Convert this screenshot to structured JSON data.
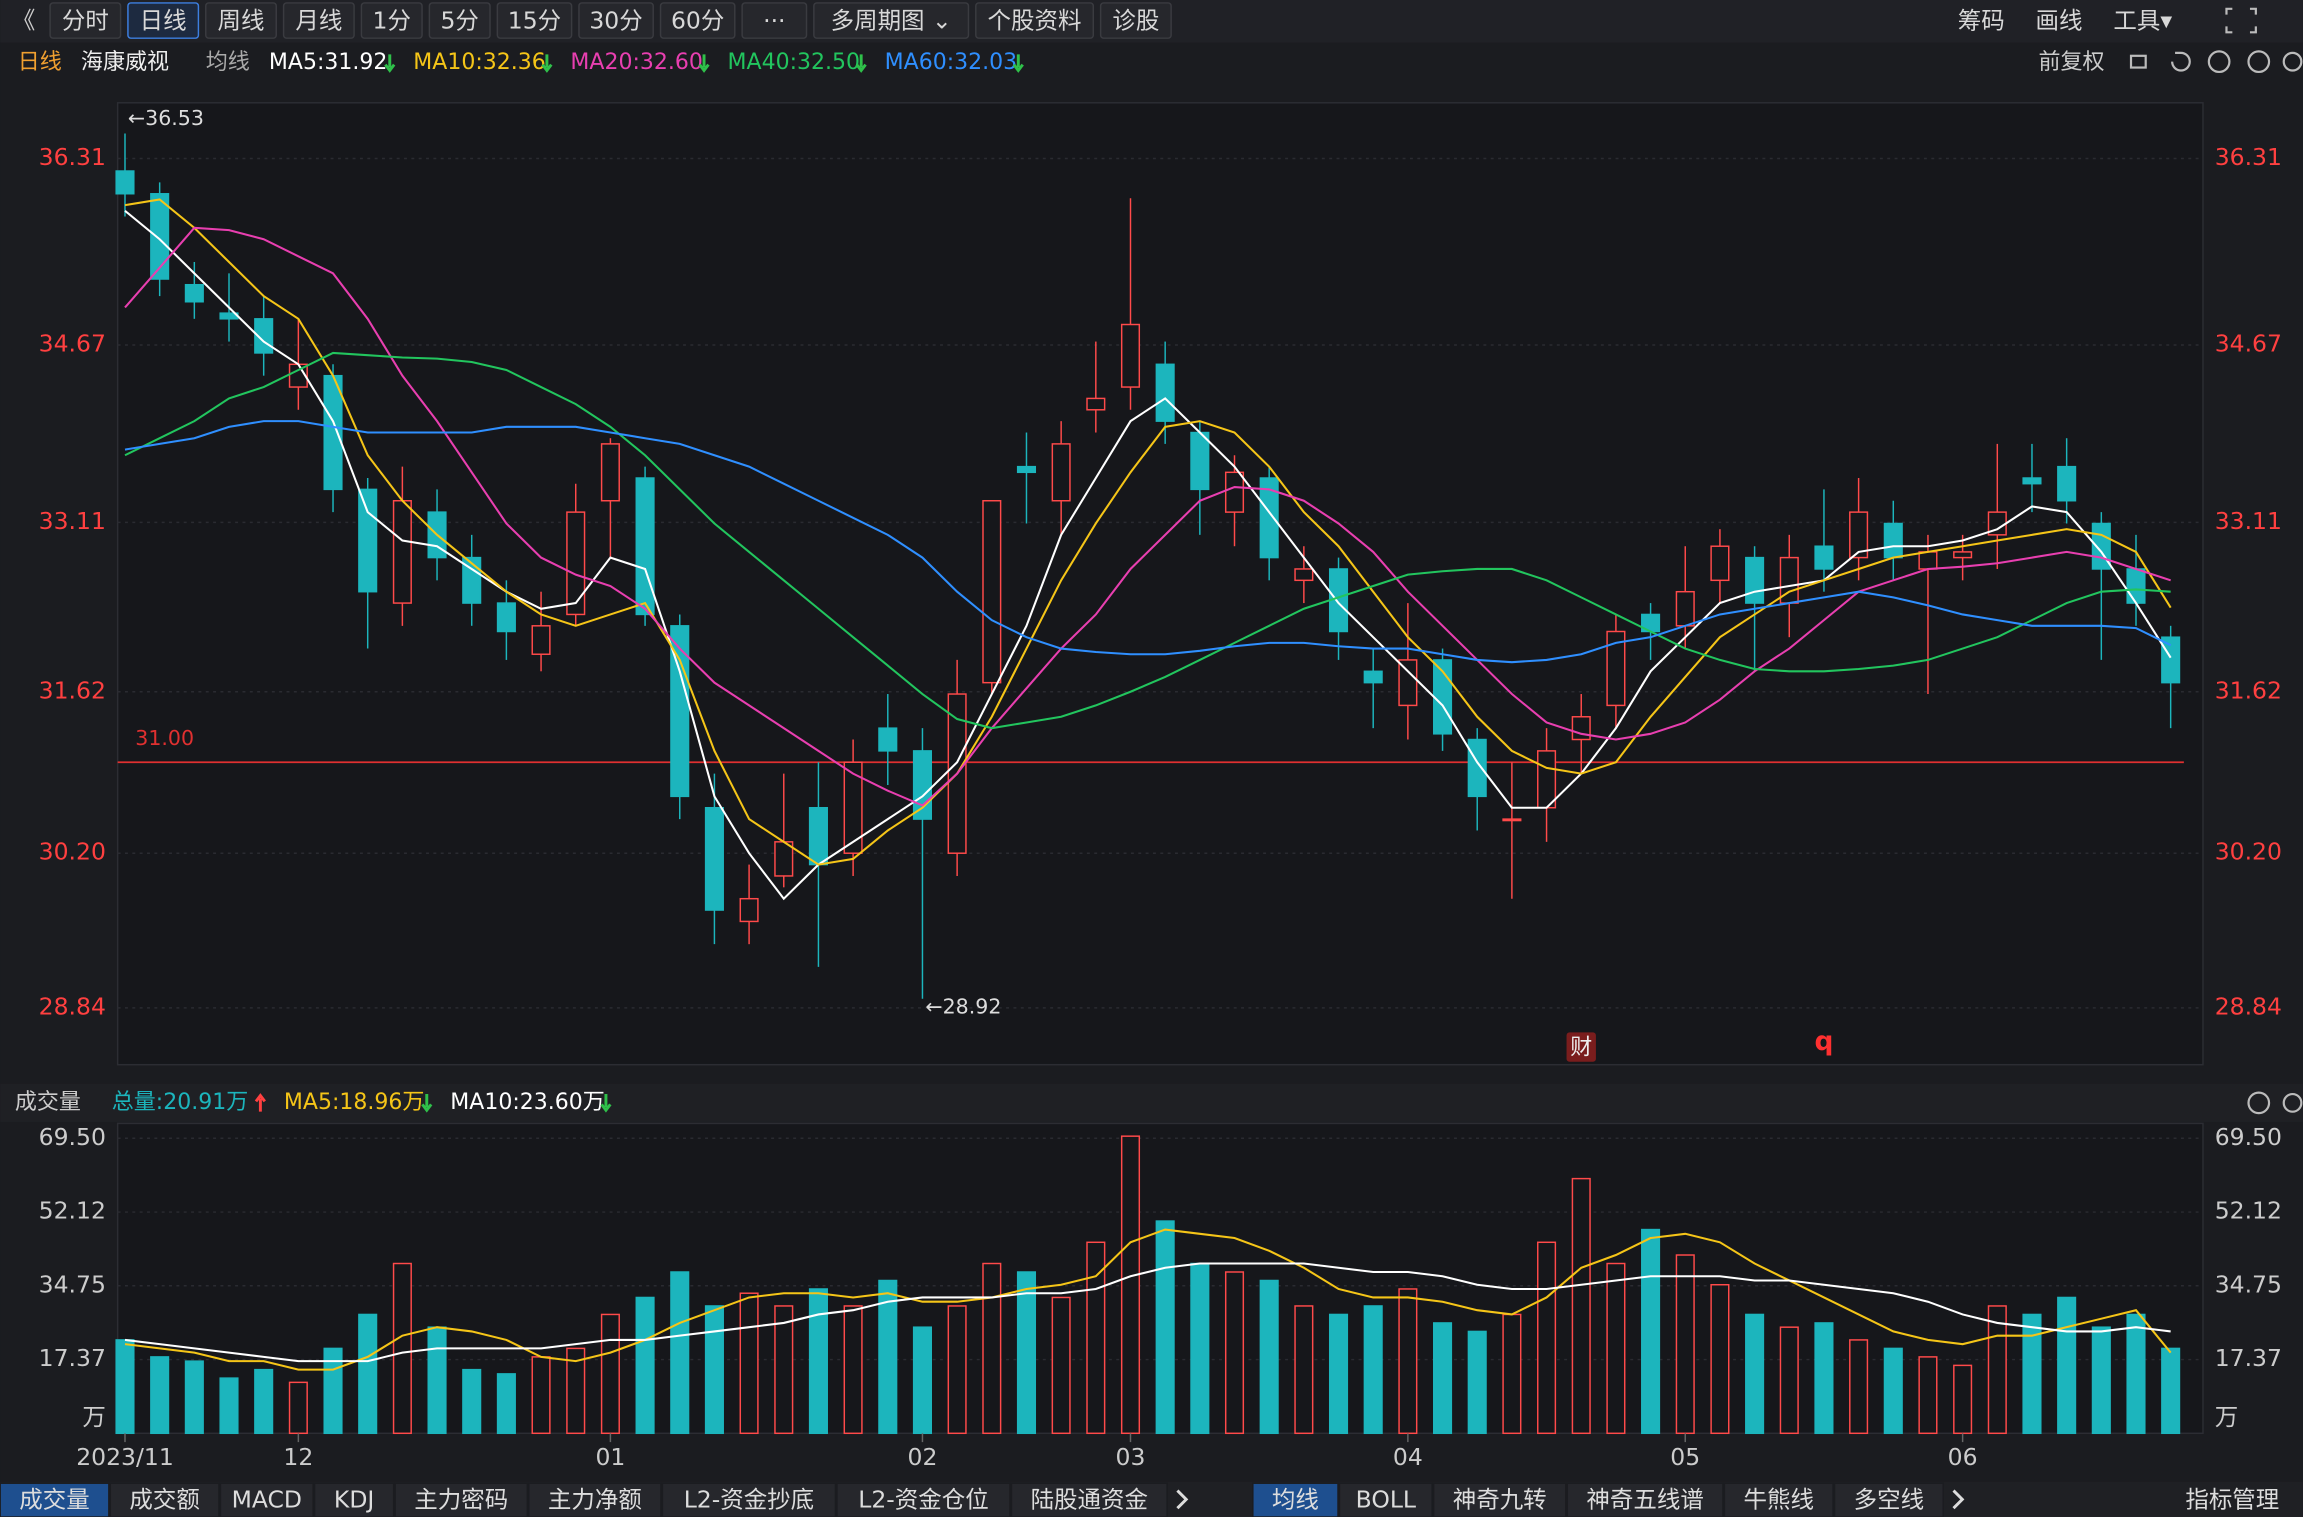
{
  "toolbar": {
    "back": "《",
    "left": [
      {
        "label": "分时"
      },
      {
        "label": "日线",
        "active": true
      },
      {
        "label": "周线"
      },
      {
        "label": "月线"
      },
      {
        "label": "1分"
      },
      {
        "label": "5分"
      },
      {
        "label": "15分"
      },
      {
        "label": "30分"
      },
      {
        "label": "60分"
      },
      {
        "label": "···"
      },
      {
        "label": "多周期图 ⌄"
      },
      {
        "label": "个股资料"
      },
      {
        "label": "诊股"
      }
    ],
    "right": [
      "筹码",
      "画线",
      "工具▾"
    ]
  },
  "info_bar": {
    "period": "日线",
    "stock": "海康威视",
    "indicator": "均线",
    "adjust": "前复权"
  },
  "chart_data": [
    {
      "type": "candlestick",
      "up_color": "#ff4a4a",
      "down_color": "#1cb5bd",
      "grid": true,
      "ylim": [
        28.34,
        36.8
      ],
      "yticks": [
        28.84,
        {
          "value": 30.2,
          "label": "30.20"
        },
        31.62,
        33.11,
        34.67,
        36.31
      ],
      "hline": {
        "value": 31,
        "label": "31.00",
        "color": "#e03030"
      },
      "annotations": {
        "max": "←36.53",
        "min": "←28.92"
      },
      "markers": [
        {
          "label": "财",
          "index": 42
        },
        {
          "label": "q",
          "index": 49
        }
      ],
      "categories": [
        "2023/11",
        null,
        null,
        null,
        null,
        "12",
        null,
        null,
        null,
        null,
        null,
        null,
        null,
        null,
        "01",
        null,
        null,
        null,
        null,
        null,
        null,
        null,
        null,
        "02",
        null,
        null,
        null,
        null,
        null,
        "03",
        null,
        null,
        null,
        null,
        null,
        null,
        null,
        "04",
        null,
        null,
        null,
        null,
        null,
        null,
        null,
        "05",
        null,
        null,
        null,
        null,
        null,
        null,
        null,
        "06",
        null,
        null,
        null,
        null,
        null,
        null
      ],
      "candles": [
        [
          36.2,
          36.53,
          35.8,
          36.0
        ],
        [
          36.0,
          36.1,
          35.1,
          35.25
        ],
        [
          35.2,
          35.4,
          34.9,
          35.05
        ],
        [
          34.95,
          35.3,
          34.7,
          34.9
        ],
        [
          34.9,
          35.1,
          34.4,
          34.6
        ],
        [
          34.3,
          34.9,
          34.1,
          34.5
        ],
        [
          34.4,
          34.5,
          33.2,
          33.4
        ],
        [
          33.4,
          33.5,
          32.0,
          32.5
        ],
        [
          32.4,
          33.6,
          32.2,
          33.3
        ],
        [
          33.2,
          33.4,
          32.6,
          32.8
        ],
        [
          32.8,
          33.0,
          32.2,
          32.4
        ],
        [
          32.4,
          32.6,
          31.9,
          32.15
        ],
        [
          31.95,
          32.5,
          31.8,
          32.2
        ],
        [
          32.3,
          33.45,
          32.2,
          33.2
        ],
        [
          33.3,
          33.85,
          32.8,
          33.8
        ],
        [
          33.5,
          33.6,
          32.2,
          32.3
        ],
        [
          32.2,
          32.3,
          30.5,
          30.7
        ],
        [
          30.6,
          30.9,
          29.4,
          29.7
        ],
        [
          29.6,
          30.1,
          29.4,
          29.8
        ],
        [
          30.0,
          30.9,
          29.9,
          30.3
        ],
        [
          30.6,
          31.0,
          29.2,
          30.1
        ],
        [
          30.2,
          31.2,
          30.0,
          31.0
        ],
        [
          31.3,
          31.6,
          30.8,
          31.1
        ],
        [
          31.1,
          31.3,
          28.92,
          30.5
        ],
        [
          30.2,
          31.9,
          30.0,
          31.6
        ],
        [
          31.7,
          33.3,
          31.6,
          33.3
        ],
        [
          33.6,
          33.9,
          33.1,
          33.55
        ],
        [
          33.3,
          34.0,
          33.0,
          33.8
        ],
        [
          34.1,
          34.7,
          33.9,
          34.2
        ],
        [
          34.3,
          35.96,
          34.1,
          34.85
        ],
        [
          34.5,
          34.7,
          33.8,
          34.0
        ],
        [
          33.9,
          34.0,
          33.0,
          33.4
        ],
        [
          33.2,
          33.7,
          32.9,
          33.55
        ],
        [
          33.5,
          33.6,
          32.6,
          32.8
        ],
        [
          32.6,
          32.9,
          32.4,
          32.7
        ],
        [
          32.7,
          32.8,
          31.9,
          32.15
        ],
        [
          31.8,
          32.0,
          31.3,
          31.7
        ],
        [
          31.5,
          32.4,
          31.2,
          31.9
        ],
        [
          31.9,
          32.0,
          31.1,
          31.25
        ],
        [
          31.2,
          31.3,
          30.4,
          30.7
        ],
        [
          30.5,
          31.0,
          29.8,
          30.5
        ],
        [
          30.6,
          31.3,
          30.3,
          31.1
        ],
        [
          31.2,
          31.6,
          30.9,
          31.4
        ],
        [
          31.5,
          32.3,
          31.3,
          32.15
        ],
        [
          32.3,
          32.4,
          31.9,
          32.15
        ],
        [
          32.2,
          32.9,
          32.0,
          32.5
        ],
        [
          32.6,
          33.05,
          32.4,
          32.9
        ],
        [
          32.8,
          32.9,
          31.8,
          32.4
        ],
        [
          32.4,
          33.0,
          32.1,
          32.8
        ],
        [
          32.9,
          33.4,
          32.5,
          32.7
        ],
        [
          32.8,
          33.5,
          32.6,
          33.2
        ],
        [
          33.1,
          33.3,
          32.6,
          32.8
        ],
        [
          32.7,
          33.0,
          31.6,
          32.85
        ],
        [
          32.8,
          33.0,
          32.6,
          32.85
        ],
        [
          33.0,
          33.8,
          32.7,
          33.2
        ],
        [
          33.5,
          33.8,
          33.2,
          33.45
        ],
        [
          33.6,
          33.85,
          33.1,
          33.3
        ],
        [
          33.1,
          33.2,
          31.9,
          32.7
        ],
        [
          32.7,
          33.0,
          32.2,
          32.4
        ],
        [
          32.1,
          32.2,
          31.3,
          31.7
        ]
      ],
      "series": [
        {
          "name": "MA5:31.92",
          "color": "#ffffff",
          "trend": "down",
          "values": [
            35.85,
            35.6,
            35.3,
            35.0,
            34.7,
            34.5,
            34.0,
            33.2,
            32.95,
            32.9,
            32.7,
            32.5,
            32.35,
            32.4,
            32.8,
            32.7,
            31.8,
            30.7,
            30.2,
            29.8,
            30.1,
            30.3,
            30.5,
            30.7,
            31.0,
            31.6,
            32.2,
            33.0,
            33.5,
            34.0,
            34.2,
            33.9,
            33.6,
            33.2,
            32.8,
            32.4,
            32.1,
            31.8,
            31.5,
            31.0,
            30.6,
            30.6,
            30.9,
            31.3,
            31.8,
            32.1,
            32.4,
            32.5,
            32.55,
            32.6,
            32.85,
            32.9,
            32.9,
            32.95,
            33.05,
            33.25,
            33.2,
            32.85,
            32.4,
            31.92
          ]
        },
        {
          "name": "MA10:32.36",
          "color": "#f5c518",
          "trend": "down",
          "values": [
            35.9,
            35.95,
            35.7,
            35.4,
            35.1,
            34.9,
            34.4,
            33.7,
            33.3,
            33.0,
            32.75,
            32.5,
            32.3,
            32.2,
            32.3,
            32.4,
            31.9,
            31.1,
            30.5,
            30.3,
            30.1,
            30.15,
            30.4,
            30.6,
            30.9,
            31.4,
            32.0,
            32.6,
            33.1,
            33.55,
            33.95,
            34.0,
            33.9,
            33.6,
            33.2,
            32.9,
            32.5,
            32.1,
            31.8,
            31.4,
            31.1,
            30.95,
            30.9,
            31.0,
            31.4,
            31.75,
            32.1,
            32.3,
            32.5,
            32.6,
            32.7,
            32.8,
            32.85,
            32.9,
            32.95,
            33.0,
            33.05,
            33.0,
            32.85,
            32.36
          ]
        },
        {
          "name": "MA20:32.60",
          "color": "#e83fb0",
          "trend": "down",
          "values": [
            35.0,
            35.35,
            35.7,
            35.68,
            35.6,
            35.45,
            35.3,
            34.9,
            34.4,
            34.0,
            33.55,
            33.1,
            32.8,
            32.65,
            32.55,
            32.35,
            32.0,
            31.7,
            31.5,
            31.3,
            31.1,
            30.9,
            30.75,
            30.62,
            30.9,
            31.3,
            31.65,
            32.0,
            32.3,
            32.7,
            33.0,
            33.3,
            33.42,
            33.4,
            33.3,
            33.1,
            32.85,
            32.5,
            32.2,
            31.9,
            31.6,
            31.35,
            31.25,
            31.2,
            31.25,
            31.35,
            31.55,
            31.8,
            32.0,
            32.25,
            32.5,
            32.6,
            32.7,
            32.72,
            32.75,
            32.8,
            32.85,
            32.8,
            32.7,
            32.6
          ]
        },
        {
          "name": "MA40:32.50",
          "color": "#22c55e",
          "trend": "down",
          "values": [
            33.7,
            33.85,
            34.0,
            34.2,
            34.3,
            34.45,
            34.6,
            34.58,
            34.56,
            34.55,
            34.52,
            34.45,
            34.3,
            34.15,
            33.95,
            33.7,
            33.4,
            33.1,
            32.85,
            32.6,
            32.35,
            32.1,
            31.85,
            31.6,
            31.38,
            31.3,
            31.35,
            31.4,
            31.5,
            31.62,
            31.75,
            31.9,
            32.05,
            32.2,
            32.35,
            32.45,
            32.55,
            32.65,
            32.68,
            32.7,
            32.7,
            32.6,
            32.45,
            32.3,
            32.15,
            32.0,
            31.9,
            31.82,
            31.8,
            31.8,
            31.82,
            31.85,
            31.9,
            32.0,
            32.1,
            32.25,
            32.4,
            32.5,
            32.52,
            32.5
          ]
        },
        {
          "name": "MA60:32.03",
          "color": "#2f8fff",
          "trend": "down",
          "values": [
            33.75,
            33.8,
            33.85,
            33.95,
            34.0,
            34.0,
            33.95,
            33.9,
            33.9,
            33.9,
            33.9,
            33.95,
            33.95,
            33.95,
            33.9,
            33.85,
            33.8,
            33.7,
            33.6,
            33.45,
            33.3,
            33.15,
            33.0,
            32.8,
            32.5,
            32.25,
            32.1,
            32.0,
            31.97,
            31.95,
            31.95,
            31.98,
            32.02,
            32.05,
            32.05,
            32.02,
            32.0,
            32.0,
            31.95,
            31.9,
            31.88,
            31.9,
            31.95,
            32.05,
            32.1,
            32.2,
            32.3,
            32.35,
            32.4,
            32.45,
            32.5,
            32.45,
            32.38,
            32.3,
            32.25,
            32.2,
            32.2,
            32.2,
            32.18,
            32.03
          ]
        }
      ]
    },
    {
      "type": "bar",
      "title": "成交量",
      "total": {
        "label": "总量:20.91万",
        "color": "#1cb5bd",
        "trend": "up"
      },
      "unit": "万",
      "ylim": [
        0,
        73
      ],
      "yticks": [
        17.37,
        34.75,
        52.12,
        {
          "value": 69.5,
          "label": "69.50"
        }
      ],
      "values": [
        22,
        18,
        17,
        13,
        15,
        12,
        20,
        28,
        40,
        25,
        15,
        14,
        18,
        20,
        28,
        32,
        38,
        30,
        33,
        30,
        34,
        30,
        36,
        25,
        30,
        40,
        38,
        32,
        45,
        70,
        50,
        40,
        38,
        36,
        30,
        28,
        30,
        34,
        26,
        24,
        28,
        45,
        60,
        40,
        48,
        42,
        35,
        28,
        25,
        26,
        22,
        20,
        18,
        16,
        30,
        28,
        32,
        25,
        28,
        20
      ],
      "series": [
        {
          "name": "MA5:18.96万",
          "color": "#f5c518",
          "trend": "down",
          "values": [
            21,
            20,
            19,
            17,
            17,
            15,
            15,
            18,
            23,
            25,
            24,
            22,
            18,
            17,
            19,
            22,
            26,
            29,
            32,
            33,
            33,
            32,
            33,
            31,
            31,
            32,
            34,
            35,
            37,
            45,
            48,
            47,
            46,
            43,
            39,
            34,
            32,
            32,
            31,
            29,
            28,
            32,
            39,
            42,
            46,
            47,
            45,
            40,
            36,
            32,
            28,
            24,
            22,
            21,
            23,
            23,
            25,
            27,
            29,
            19
          ]
        },
        {
          "name": "MA10:23.60万",
          "color": "#ffffff",
          "trend": "down",
          "values": [
            22,
            21,
            20,
            19,
            18,
            17,
            17,
            17,
            19,
            20,
            20,
            20,
            20,
            21,
            22,
            22,
            23,
            24,
            25,
            26,
            28,
            29,
            31,
            32,
            32,
            32,
            33,
            33,
            34,
            37,
            39,
            40,
            40,
            40,
            40,
            39,
            38,
            38,
            37,
            35,
            34,
            34,
            35,
            36,
            37,
            37,
            37,
            36,
            36,
            35,
            34,
            33,
            31,
            28,
            26,
            25,
            24,
            24,
            25,
            24
          ]
        }
      ]
    }
  ],
  "bottom_tabs": {
    "left": [
      {
        "label": "成交量",
        "active": true
      },
      {
        "label": "成交额"
      },
      {
        "label": "MACD"
      },
      {
        "label": "KDJ"
      },
      {
        "label": "主力密码"
      },
      {
        "label": "主力净额"
      },
      {
        "label": "L2-资金抄底"
      },
      {
        "label": "L2-资金仓位"
      },
      {
        "label": "陆股通资金"
      }
    ],
    "right": [
      {
        "label": "均线",
        "active": true
      },
      {
        "label": "BOLL"
      },
      {
        "label": "神奇九转"
      },
      {
        "label": "神奇五线谱"
      },
      {
        "label": "牛熊线"
      },
      {
        "label": "多空线"
      }
    ],
    "manage": "指标管理"
  }
}
